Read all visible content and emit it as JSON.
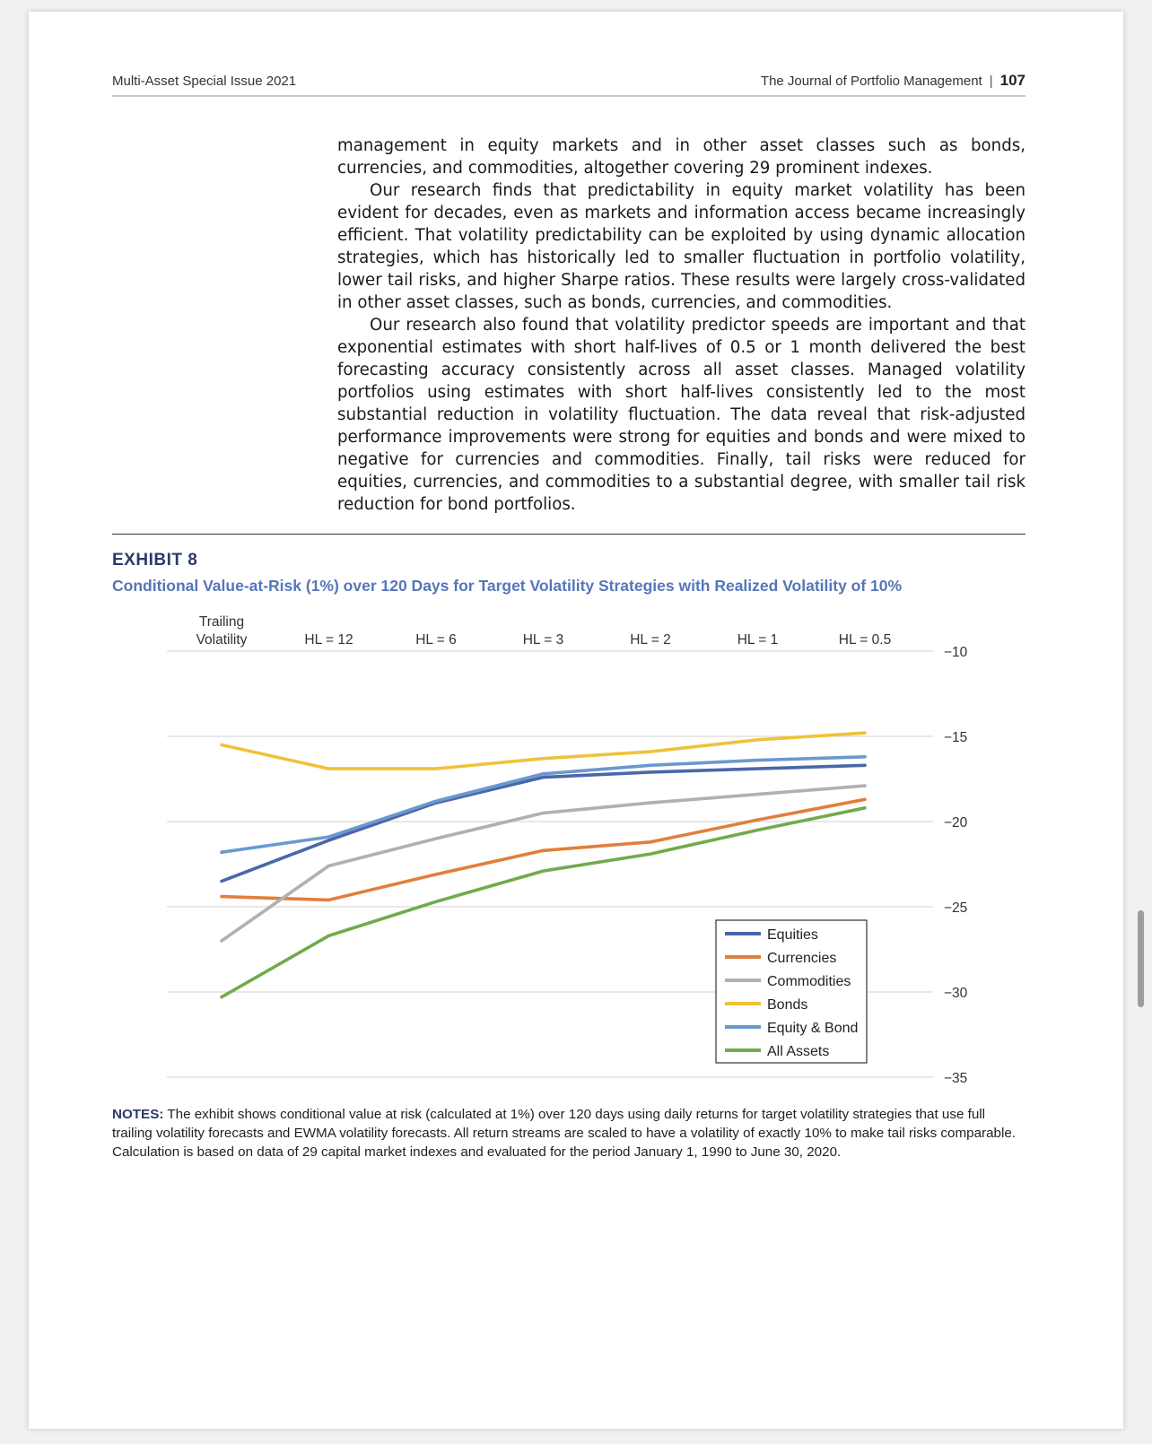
{
  "header": {
    "left": "Multi-Asset Special Issue 2021",
    "journal": "The Journal of Portfolio Management",
    "separator": "|",
    "page_number": "107"
  },
  "body": {
    "paragraphs": [
      "management in equity markets and in other asset classes such as bonds, currencies, and commodities, altogether covering 29 prominent indexes.",
      "Our research finds that predictability in equity market volatility has been evident for decades, even as markets and information access became increasingly efficient. That volatility predictability can be exploited by using dynamic allocation strategies, which has historically led to smaller fluctuation in portfolio volatility, lower tail risks, and higher Sharpe ratios. These results were largely cross-validated in other asset classes, such as bonds, currencies, and commodities.",
      "Our research also found that volatility predictor speeds are important and that exponential estimates with short half-lives of 0.5 or 1 month delivered the best fore­casting accuracy consistently across all asset classes. Managed volatility portfolios using estimates with short half-lives consistently led to the most substantial reduction in volatility fluctuation. The data reveal that risk-adjusted performance improvements were strong for equities and bonds and were mixed to negative for currencies and commodities. Finally, tail risks were reduced for equities, currencies, and commodities to a substantial degree, with smaller tail risk reduction for bond portfolios."
    ]
  },
  "exhibit": {
    "label": "EXHIBIT 8",
    "title": "Conditional Value-at-Risk (1%) over 120 Days for Target Volatility Strategies with Realized Volatility of 10%"
  },
  "chart_data": {
    "type": "line",
    "title": "",
    "xlabel": "",
    "ylabel": "",
    "categories": [
      "Trailing\nVolatility",
      "HL = 12",
      "HL = 6",
      "HL = 3",
      "HL = 2",
      "HL = 1",
      "HL = 0.5"
    ],
    "x_axis_position": "top",
    "y_axis_position": "right",
    "ylim": [
      -35,
      -10
    ],
    "yticks": [
      -10,
      -15,
      -20,
      -25,
      -30,
      -35
    ],
    "ytick_labels": [
      "−10",
      "−15",
      "−20",
      "−25",
      "−30",
      "−35"
    ],
    "grid": true,
    "legend_position": "lower-right",
    "series": [
      {
        "name": "Equities",
        "color": "#4a67a8",
        "values": [
          -23.5,
          -21.1,
          -18.9,
          -17.4,
          -17.1,
          -16.9,
          -16.7
        ]
      },
      {
        "name": "Currencies",
        "color": "#e07f3c",
        "values": [
          -24.4,
          -24.6,
          -23.1,
          -21.7,
          -21.2,
          -19.9,
          -18.7
        ]
      },
      {
        "name": "Commodities",
        "color": "#b0b0b0",
        "values": [
          -27.0,
          -22.6,
          -21.0,
          -19.5,
          -18.9,
          -18.4,
          -17.9
        ]
      },
      {
        "name": "Bonds",
        "color": "#f0c13a",
        "values": [
          -15.5,
          -16.9,
          -16.9,
          -16.3,
          -15.9,
          -15.2,
          -14.8
        ]
      },
      {
        "name": "Equity & Bond",
        "color": "#6b98cf",
        "values": [
          -21.8,
          -20.9,
          -18.8,
          -17.2,
          -16.7,
          -16.4,
          -16.2
        ]
      },
      {
        "name": "All Assets",
        "color": "#72aa4c",
        "values": [
          -30.3,
          -26.7,
          -24.7,
          -22.9,
          -21.9,
          -20.5,
          -19.2
        ]
      }
    ]
  },
  "notes": {
    "label": "NOTES:",
    "text": "The exhibit shows conditional value at risk (calculated at 1%) over 120 days using daily returns for target volatility strategies that use full trailing volatility forecasts and EWMA volatility forecasts. All return streams are scaled to have a volatility of exactly 10% to make tail risks comparable. Calculation is based on data of 29 capital market indexes and evaluated for the period January 1, 1990 to June 30, 2020."
  }
}
